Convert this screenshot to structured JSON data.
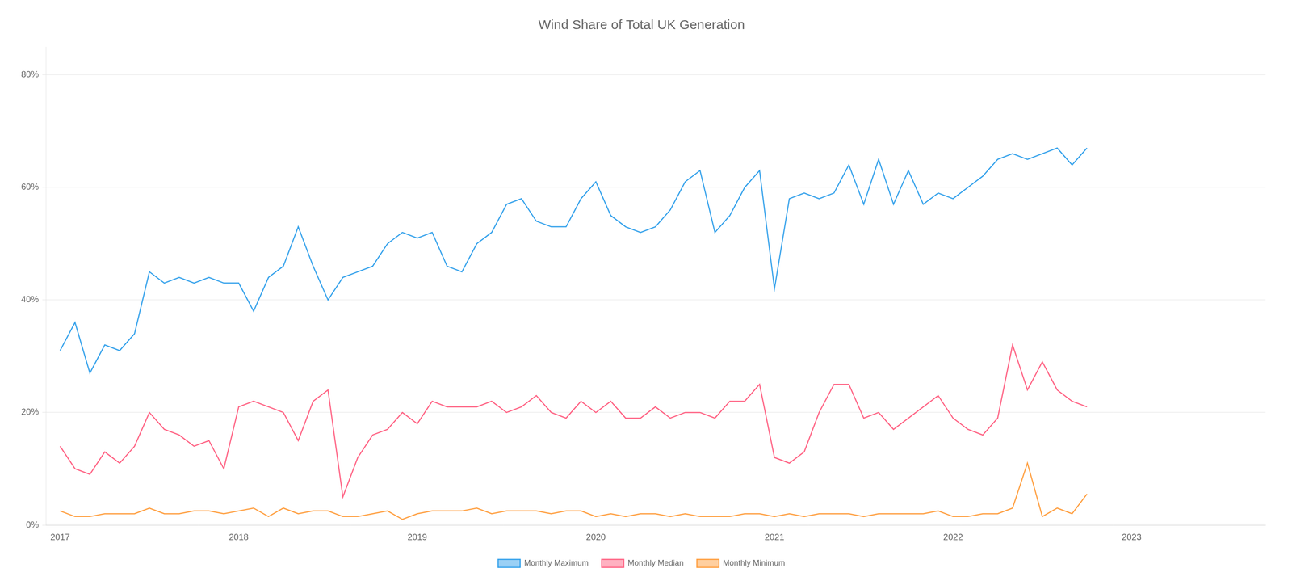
{
  "chart_data": {
    "type": "line",
    "title": "Wind Share of Total UK Generation",
    "x": [
      2017.0,
      2017.0833333333333,
      2017.1666666666667,
      2017.25,
      2017.3333333333333,
      2017.4166666666667,
      2017.5,
      2017.5833333333333,
      2017.6666666666667,
      2017.75,
      2017.8333333333333,
      2017.9166666666667,
      2018.0,
      2018.0833333333333,
      2018.1666666666667,
      2018.25,
      2018.3333333333333,
      2018.4166666666667,
      2018.5,
      2018.5833333333333,
      2018.6666666666667,
      2018.75,
      2018.8333333333333,
      2018.9166666666667,
      2019.0,
      2019.0833333333333,
      2019.1666666666667,
      2019.25,
      2019.3333333333333,
      2019.4166666666667,
      2019.5,
      2019.5833333333333,
      2019.6666666666667,
      2019.75,
      2019.8333333333333,
      2019.9166666666667,
      2020.0,
      2020.0833333333333,
      2020.1666666666667,
      2020.25,
      2020.3333333333333,
      2020.4166666666667,
      2020.5,
      2020.5833333333333,
      2020.6666666666667,
      2020.75,
      2020.8333333333333,
      2020.9166666666667,
      2021.0,
      2021.0833333333333,
      2021.1666666666667,
      2021.25,
      2021.3333333333333,
      2021.4166666666667,
      2021.5,
      2021.5833333333333,
      2021.6666666666667,
      2021.75,
      2021.8333333333333,
      2021.9166666666667,
      2022.0,
      2022.0833333333333,
      2022.1666666666667,
      2022.25,
      2022.3333333333333,
      2022.4166666666667,
      2022.5,
      2022.5833333333333,
      2022.6666666666667,
      2022.75
    ],
    "series": [
      {
        "name": "Monthly Maximum",
        "values": [
          0.31,
          0.36,
          0.27,
          0.32,
          0.31,
          0.34,
          0.45,
          0.43,
          0.44,
          0.43,
          0.44,
          0.43,
          0.43,
          0.38,
          0.44,
          0.46,
          0.53,
          0.46,
          0.4,
          0.44,
          0.45,
          0.46,
          0.5,
          0.52,
          0.51,
          0.52,
          0.46,
          0.45,
          0.5,
          0.52,
          0.57,
          0.58,
          0.54,
          0.53,
          0.53,
          0.58,
          0.61,
          0.55,
          0.53,
          0.52,
          0.53,
          0.56,
          0.61,
          0.63,
          0.52,
          0.55,
          0.6,
          0.63,
          0.42,
          0.58,
          0.59,
          0.58,
          0.59,
          0.64,
          0.57,
          0.65,
          0.57,
          0.63,
          0.57,
          0.59,
          0.58,
          0.6,
          0.62,
          0.65,
          0.66,
          0.65,
          0.66,
          0.67,
          0.64,
          0.67
        ]
      },
      {
        "name": "Monthly Median",
        "values": [
          0.14,
          0.1,
          0.09,
          0.13,
          0.11,
          0.14,
          0.2,
          0.17,
          0.16,
          0.14,
          0.15,
          0.1,
          0.21,
          0.22,
          0.21,
          0.2,
          0.15,
          0.22,
          0.24,
          0.05,
          0.12,
          0.16,
          0.17,
          0.2,
          0.18,
          0.22,
          0.21,
          0.21,
          0.21,
          0.22,
          0.2,
          0.21,
          0.23,
          0.2,
          0.19,
          0.22,
          0.2,
          0.22,
          0.19,
          0.19,
          0.21,
          0.19,
          0.2,
          0.2,
          0.19,
          0.22,
          0.22,
          0.25,
          0.12,
          0.11,
          0.13,
          0.2,
          0.25,
          0.25,
          0.19,
          0.2,
          0.17,
          0.19,
          0.21,
          0.23,
          0.19,
          0.17,
          0.16,
          0.19,
          0.32,
          0.24,
          0.29,
          0.24,
          0.22,
          0.21
        ]
      },
      {
        "name": "Monthly Minimum",
        "values": [
          0.025,
          0.015,
          0.015,
          0.02,
          0.02,
          0.02,
          0.03,
          0.02,
          0.02,
          0.025,
          0.025,
          0.02,
          0.025,
          0.03,
          0.015,
          0.03,
          0.02,
          0.025,
          0.025,
          0.015,
          0.015,
          0.02,
          0.025,
          0.01,
          0.02,
          0.025,
          0.025,
          0.025,
          0.03,
          0.02,
          0.025,
          0.025,
          0.025,
          0.02,
          0.025,
          0.025,
          0.015,
          0.02,
          0.015,
          0.02,
          0.02,
          0.015,
          0.02,
          0.015,
          0.015,
          0.015,
          0.02,
          0.02,
          0.015,
          0.02,
          0.015,
          0.02,
          0.02,
          0.02,
          0.015,
          0.02,
          0.02,
          0.02,
          0.02,
          0.025,
          0.015,
          0.015,
          0.02,
          0.02,
          0.03,
          0.11,
          0.015,
          0.03,
          0.02,
          0.055
        ]
      }
    ],
    "xlim": [
      2016.92,
      2023.75
    ],
    "xticks": [
      2017,
      2018,
      2019,
      2020,
      2021,
      2022,
      2023
    ],
    "ylim": [
      0,
      0.85
    ],
    "yticks": [
      {
        "value": 0.0,
        "label": "0%"
      },
      {
        "value": 0.2,
        "label": "20%"
      },
      {
        "value": 0.4,
        "label": "40%"
      },
      {
        "value": 0.6,
        "label": "60%"
      },
      {
        "value": 0.8,
        "label": "80%"
      }
    ],
    "grid": "y",
    "legend": "bottom"
  }
}
